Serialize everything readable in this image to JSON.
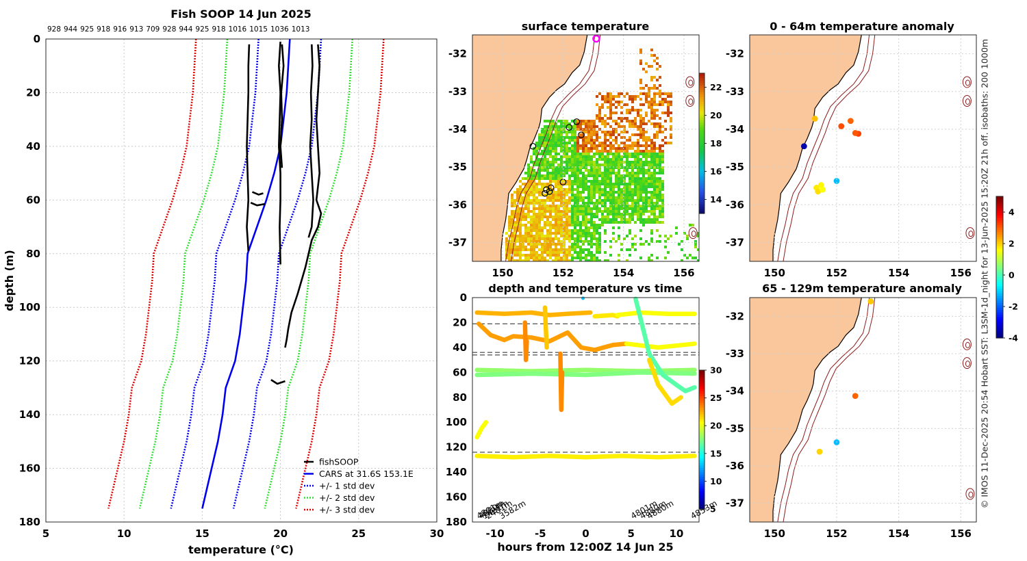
{
  "figure": {
    "footer_note": "© IMOS 11-Dec-2025 20:54 Hobart SST: L3SM-1d_night for 13-Jun-2025 15:20Z 21h off. isobaths: 200  1000m",
    "land_color": "#f9c79b",
    "isobath_color": "#8b1a1a"
  },
  "chart_data": [
    {
      "id": "profile",
      "type": "line",
      "title": "Fish SOOP 14 Jun 2025",
      "top_labels": [
        "928",
        "944",
        "925",
        "918",
        "916",
        "913",
        "709",
        "928",
        "944",
        "925",
        "918",
        "1016",
        "1015",
        "1036",
        "1013"
      ],
      "xlabel": "temperature (°C)",
      "ylabel": "depth (m)",
      "xlim": [
        5,
        30
      ],
      "ylim": [
        180,
        0
      ],
      "xticks": [
        5,
        10,
        15,
        20,
        25,
        30
      ],
      "yticks": [
        0,
        20,
        40,
        60,
        80,
        100,
        120,
        140,
        160,
        180
      ],
      "grid": true,
      "legend": {
        "placement": "bottom-right",
        "entries": [
          {
            "label": "fishSOOP",
            "color": "#000000",
            "style": "solid"
          },
          {
            "label": "CARS at 31.6S 153.1E",
            "color": "#0000ee",
            "style": "solid"
          },
          {
            "label": "+/- 1 std dev",
            "color": "#0000ee",
            "style": "dotted"
          },
          {
            "label": "+/- 2 std dev",
            "color": "#33dd33",
            "style": "dotted"
          },
          {
            "label": "+/- 3 std dev",
            "color": "#dd0000",
            "style": "dotted"
          }
        ]
      },
      "depth": [
        0,
        10,
        20,
        30,
        40,
        50,
        60,
        70,
        80,
        90,
        100,
        110,
        120,
        130,
        140,
        150,
        160,
        170,
        175
      ],
      "cars_mean": [
        20.6,
        20.5,
        20.4,
        20.2,
        20.0,
        19.6,
        19.1,
        18.5,
        17.9,
        17.8,
        17.6,
        17.4,
        17.1,
        16.5,
        16.3,
        16.0,
        15.6,
        15.2,
        15.0
      ],
      "std_offsets": {
        "std1": 2.0,
        "std2": 4.0,
        "std3": 6.0
      },
      "series": [
        {
          "name": "fishSOOP cast 1",
          "temp": [
            18.0,
            17.95,
            17.95,
            17.9,
            17.85,
            17.9,
            17.95,
            17.85,
            17.95
          ],
          "depth": [
            2,
            10,
            20,
            30,
            40,
            50,
            60,
            70,
            79
          ]
        },
        {
          "name": "fishSOOP cast 2",
          "temp": [
            20.0,
            19.9,
            20.0,
            19.95,
            19.9,
            20.0,
            20.0,
            19.95,
            20.0
          ],
          "depth": [
            1,
            10,
            20,
            30,
            40,
            50,
            60,
            70,
            84
          ]
        },
        {
          "name": "fishSOOP cast 3",
          "temp": [
            20.1,
            20.2,
            20.05,
            20.1,
            20.0,
            20.1
          ],
          "depth": [
            2,
            10,
            20,
            30,
            40,
            48
          ]
        },
        {
          "name": "fishSOOP cast 4",
          "temp": [
            22.0,
            22.05,
            21.95,
            22.0,
            21.9,
            22.0,
            22.1,
            22.0,
            21.8
          ],
          "depth": [
            2,
            10,
            20,
            30,
            40,
            50,
            60,
            70,
            74
          ]
        },
        {
          "name": "fishSOOP cast 5",
          "temp": [
            22.4,
            22.5,
            22.4,
            22.3,
            22.4,
            22.5,
            22.3,
            22.6,
            22.4,
            22.0,
            21.6,
            21.1,
            20.7,
            20.5,
            20.4,
            20.3
          ],
          "depth": [
            2,
            10,
            20,
            30,
            40,
            50,
            60,
            65,
            70,
            75,
            85,
            95,
            102,
            108,
            112,
            115
          ]
        },
        {
          "name": "fishSOOP fragment 1",
          "temp": [
            18.2,
            18.6,
            18.9
          ],
          "depth": [
            57,
            58,
            57.5
          ]
        },
        {
          "name": "fishSOOP fragment 2",
          "temp": [
            18.1,
            18.5,
            19.0
          ],
          "depth": [
            61,
            62,
            61.5
          ]
        },
        {
          "name": "fishSOOP fragment 3",
          "temp": [
            19.4,
            19.8,
            20.3
          ],
          "depth": [
            127,
            128.5,
            127.5
          ]
        }
      ]
    },
    {
      "id": "sst_map",
      "type": "heatmap",
      "title": "surface temperature",
      "xlim": [
        149,
        156.5
      ],
      "ylim": [
        -37.5,
        -31.5
      ],
      "xticks": [
        150,
        152,
        154,
        156
      ],
      "yticks": [
        -32,
        -33,
        -34,
        -35,
        -36,
        -37
      ],
      "colorbar": {
        "min": 13,
        "max": 23,
        "ticks": [
          14,
          16,
          18,
          20,
          22
        ]
      },
      "marker_start": {
        "lon": 153.1,
        "lat": -31.6
      },
      "stations": [
        {
          "lon": 151.0,
          "lat": -34.45
        },
        {
          "lon": 152.45,
          "lat": -33.8
        },
        {
          "lon": 152.2,
          "lat": -33.95
        },
        {
          "lon": 152.6,
          "lat": -34.15
        },
        {
          "lon": 152.0,
          "lat": -35.4
        },
        {
          "lon": 151.45,
          "lat": -35.6
        },
        {
          "lon": 151.6,
          "lat": -35.55
        },
        {
          "lon": 151.4,
          "lat": -35.7
        },
        {
          "lon": 151.55,
          "lat": -35.65
        }
      ]
    },
    {
      "id": "time_depth",
      "type": "scatter",
      "title": "depth and temperature vs time",
      "xlabel": "hours from 12:00Z 14 Jun 25",
      "xlim": [
        -12.5,
        12.5
      ],
      "ylim": [
        180,
        0
      ],
      "xticks": [
        -10,
        -5,
        0,
        5,
        10
      ],
      "yticks": [
        0,
        20,
        40,
        60,
        80,
        100,
        120,
        140,
        160,
        180
      ],
      "colorbar": {
        "min": 5,
        "max": 30,
        "ticks": [
          5,
          10,
          15,
          20,
          25,
          30
        ]
      },
      "reference_depths": [
        21,
        44,
        46,
        124
      ],
      "rotated_labels": [
        {
          "text": "4801m",
          "x": -11.8
        },
        {
          "text": "4880m",
          "x": -11.6
        },
        {
          "text": "1421m",
          "x": -11.2
        },
        {
          "text": "2481m",
          "x": -10.8
        },
        {
          "text": "3582m",
          "x": -9.3
        },
        {
          "text": "4801m",
          "x": 5.2
        },
        {
          "text": "4880m",
          "x": 6.2
        },
        {
          "text": "4880m",
          "x": 7.0
        },
        {
          "text": "4853m",
          "x": 11.8
        }
      ],
      "tracks": [
        {
          "temp": 22.5,
          "x": [
            -12.0,
            -9.0,
            -6.0,
            -4.0,
            -2.0,
            0.5
          ],
          "y": [
            12,
            13,
            12,
            14,
            13,
            12
          ]
        },
        {
          "temp": 21.2,
          "x": [
            1.0,
            3.0,
            3.5
          ],
          "y": [
            15,
            14,
            15
          ]
        },
        {
          "temp": 20.5,
          "x": [
            3.5,
            6.0,
            9.0,
            12.0
          ],
          "y": [
            14,
            12,
            13,
            13
          ]
        },
        {
          "temp": 23.0,
          "x": [
            -11.8,
            -10.5,
            -9.0,
            -8.0,
            -6.0,
            -4.0,
            -2.0,
            -0.5,
            1.0,
            3.0,
            4.5
          ],
          "y": [
            21,
            30,
            34,
            31,
            32,
            35,
            28,
            40,
            42,
            38,
            37
          ]
        },
        {
          "temp": 20.5,
          "x": [
            4.5,
            8.0,
            12.0
          ],
          "y": [
            37,
            40,
            37
          ]
        },
        {
          "temp": 18.0,
          "x": [
            -12.0,
            -6.0,
            0.0,
            6.0,
            12.0
          ],
          "y": [
            58,
            59,
            58,
            59,
            58
          ]
        },
        {
          "temp": 17.5,
          "x": [
            -12.0,
            -6.0,
            0.0,
            6.0,
            12.0
          ],
          "y": [
            62,
            61,
            62,
            60,
            61
          ]
        },
        {
          "temp": 21.0,
          "x": [
            -12.0,
            -8.0,
            -4.0,
            0.0,
            4.0,
            8.0,
            12.0
          ],
          "y": [
            127,
            128,
            127,
            128,
            127,
            128,
            127
          ]
        },
        {
          "temp": 20.5,
          "x": [
            -12.0,
            -11.5,
            -11.0
          ],
          "y": [
            112,
            105,
            100
          ]
        },
        {
          "temp": 16.5,
          "x": [
            5.5,
            6.5,
            7.0,
            8.5,
            10.0,
            11.0,
            12.0
          ],
          "y": [
            1,
            30,
            45,
            62,
            70,
            75,
            72
          ]
        },
        {
          "temp": 21.5,
          "x": [
            7.0,
            8.0,
            9.5,
            10.5
          ],
          "y": [
            50,
            70,
            85,
            80
          ]
        },
        {
          "temp": 23.5,
          "x": [
            -2.8,
            -2.7,
            -2.6
          ],
          "y": [
            45,
            90,
            60
          ]
        },
        {
          "temp": 23.5,
          "x": [
            -6.7,
            -6.6,
            -6.5
          ],
          "y": [
            20,
            50,
            35
          ]
        },
        {
          "temp": 22.0,
          "x": [
            -4.5,
            -4.4,
            -4.3
          ],
          "y": [
            8,
            25,
            40
          ]
        }
      ],
      "marker": {
        "x": -0.3,
        "y": 0,
        "temp": 13
      }
    },
    {
      "id": "anom_top",
      "type": "scatter",
      "title": "0 - 64m temperature anomaly",
      "xlim": [
        149.2,
        156.5
      ],
      "ylim": [
        -37.5,
        -31.5
      ],
      "xticks": [
        150,
        152,
        154,
        156
      ],
      "yticks": [
        -32,
        -33,
        -34,
        -35,
        -36,
        -37
      ],
      "colorbar": {
        "min": -4,
        "max": 5,
        "ticks": [
          -4,
          -2,
          0,
          2,
          4
        ]
      },
      "points": [
        {
          "lon": 151.3,
          "lat": -33.72,
          "anom": 2.2
        },
        {
          "lon": 152.15,
          "lat": -33.92,
          "anom": 3.2
        },
        {
          "lon": 152.45,
          "lat": -33.78,
          "anom": 3.0
        },
        {
          "lon": 152.7,
          "lat": -34.12,
          "anom": 3.3
        },
        {
          "lon": 152.6,
          "lat": -34.1,
          "anom": 3.1
        },
        {
          "lon": 150.95,
          "lat": -34.45,
          "anom": -3.6
        },
        {
          "lon": 152.0,
          "lat": -35.37,
          "anom": -1.2
        },
        {
          "lon": 151.35,
          "lat": -35.55,
          "anom": 1.8
        },
        {
          "lon": 151.5,
          "lat": -35.48,
          "anom": 1.7
        },
        {
          "lon": 151.4,
          "lat": -35.65,
          "anom": 1.9
        },
        {
          "lon": 151.55,
          "lat": -35.6,
          "anom": 1.6
        }
      ]
    },
    {
      "id": "anom_bottom",
      "type": "scatter",
      "title": "65 - 129m temperature anomaly",
      "xlim": [
        149.2,
        156.5
      ],
      "ylim": [
        -37.5,
        -31.5
      ],
      "xticks": [
        150,
        152,
        154,
        156
      ],
      "yticks": [
        -32,
        -33,
        -34,
        -35,
        -36,
        -37
      ],
      "points": [
        {
          "lon": 153.1,
          "lat": -31.6,
          "anom": 2.1
        },
        {
          "lon": 152.6,
          "lat": -34.13,
          "anom": 3.0
        },
        {
          "lon": 152.0,
          "lat": -35.37,
          "anom": -1.2
        },
        {
          "lon": 151.45,
          "lat": -35.62,
          "anom": 2.0
        }
      ]
    }
  ]
}
